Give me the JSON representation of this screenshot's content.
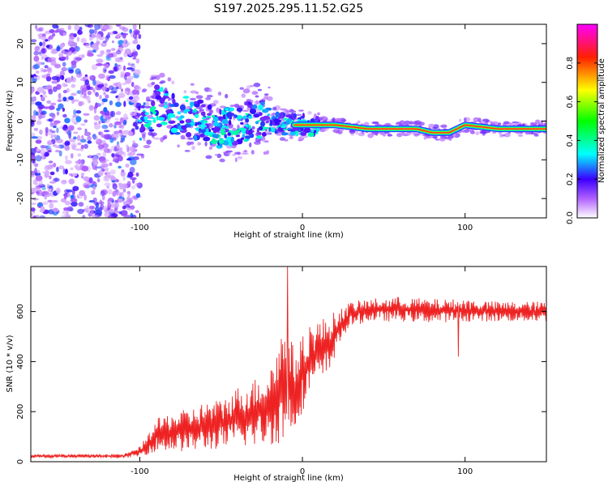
{
  "title": "S197.2025.295.11.52.G25",
  "chart_data": [
    {
      "type": "heatmap",
      "name": "spectrogram",
      "xlabel": "Height of straight line (km)",
      "ylabel": "Frequency (Hz)",
      "xlim": [
        -167,
        150
      ],
      "ylim": [
        -25,
        25
      ],
      "xticks": [
        -100,
        0,
        100
      ],
      "yticks": [
        -20,
        -10,
        0,
        10,
        20
      ],
      "colorbar": {
        "label": "Normalized spectral amplitude",
        "range": [
          0,
          1
        ],
        "ticks": [
          0.0,
          0.2,
          0.4,
          0.6,
          0.8
        ]
      },
      "noise_region_x": [
        -167,
        -100
      ],
      "signal_centerline": {
        "x": [
          -100,
          -95,
          -90,
          -80,
          -70,
          -60,
          -50,
          -40,
          -30,
          -20,
          -10,
          0,
          10,
          20,
          40,
          60,
          70,
          80,
          90,
          95,
          100,
          120,
          150
        ],
        "y": [
          -1,
          1,
          4,
          2,
          1,
          0,
          -2,
          -1,
          1,
          0,
          -1,
          -1,
          -1,
          -1,
          -2,
          -2,
          -2,
          -3,
          -3,
          -2,
          -1,
          -2,
          -2
        ]
      }
    },
    {
      "type": "line",
      "name": "snr",
      "xlabel": "Height of straight line (km)",
      "ylabel": "SNR (10 * v/v)",
      "xlim": [
        -167,
        150
      ],
      "ylim": [
        0,
        780
      ],
      "xticks": [
        -100,
        0,
        100
      ],
      "yticks": [
        0,
        200,
        400,
        600
      ],
      "color": "#ee2222",
      "envelope": {
        "x": [
          -167,
          -110,
          -100,
          -95,
          -90,
          -80,
          -70,
          -60,
          -50,
          -40,
          -30,
          -20,
          -15,
          -10,
          -5,
          0,
          5,
          10,
          15,
          20,
          25,
          30,
          40,
          60,
          80,
          100,
          120,
          150
        ],
        "low": [
          15,
          15,
          20,
          30,
          40,
          40,
          40,
          45,
          50,
          55,
          60,
          65,
          70,
          70,
          120,
          200,
          280,
          300,
          330,
          420,
          500,
          540,
          560,
          560,
          555,
          560,
          560,
          560
        ],
        "high": [
          30,
          30,
          60,
          110,
          170,
          200,
          210,
          240,
          250,
          300,
          330,
          380,
          500,
          560,
          450,
          500,
          560,
          570,
          580,
          600,
          620,
          640,
          650,
          660,
          650,
          650,
          640,
          640
        ]
      },
      "spikes": [
        {
          "x": -9,
          "y": 780
        },
        {
          "x": 96,
          "y": 420
        }
      ]
    }
  ]
}
